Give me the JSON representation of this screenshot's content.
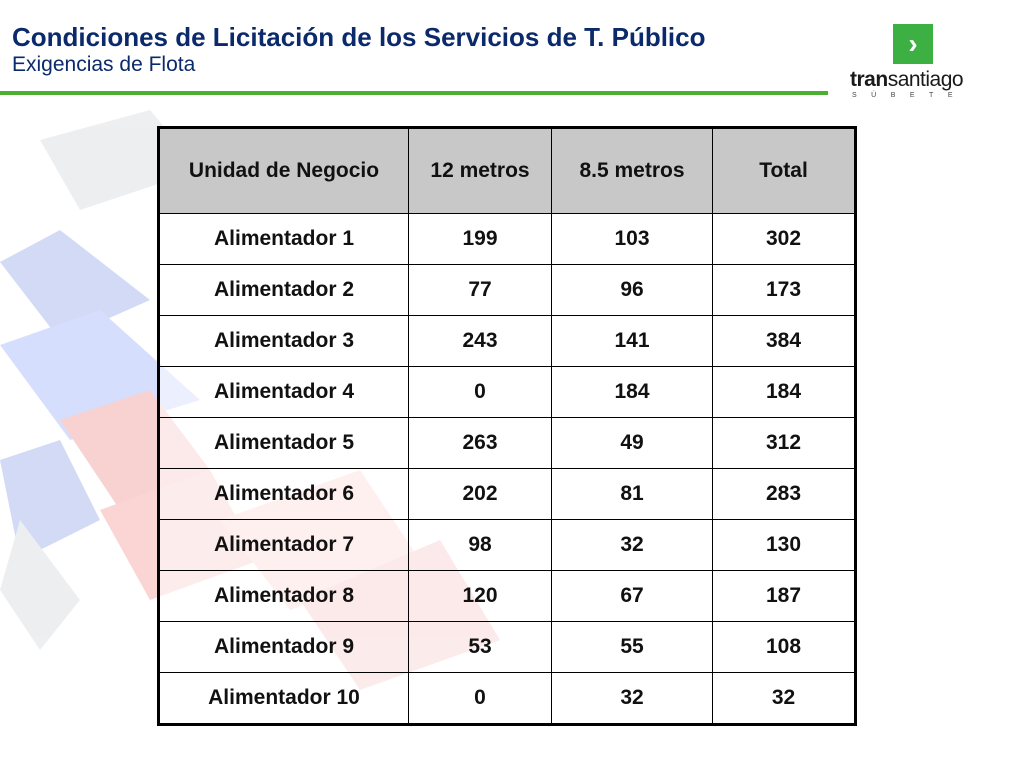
{
  "header": {
    "title": "Condiciones de Licitación de los Servicios de T. Público",
    "subtitle": "Exigencias de Flota"
  },
  "logo": {
    "arrow": "›",
    "word_bold": "tran",
    "word_rest": "santiago",
    "tagline": "SÚBETE"
  },
  "table": {
    "headers": [
      "Unidad de Negocio",
      "12 metros",
      "8.5 metros",
      "Total"
    ],
    "rows": [
      [
        "Alimentador 1",
        "199",
        "103",
        "302"
      ],
      [
        "Alimentador 2",
        "77",
        "96",
        "173"
      ],
      [
        "Alimentador 3",
        "243",
        "141",
        "384"
      ],
      [
        "Alimentador 4",
        "0",
        "184",
        "184"
      ],
      [
        "Alimentador 5",
        "263",
        "49",
        "312"
      ],
      [
        "Alimentador 6",
        "202",
        "81",
        "283"
      ],
      [
        "Alimentador 7",
        "98",
        "32",
        "130"
      ],
      [
        "Alimentador 8",
        "120",
        "67",
        "187"
      ],
      [
        "Alimentador 9",
        "53",
        "55",
        "108"
      ],
      [
        "Alimentador 10",
        "0",
        "32",
        "32"
      ]
    ]
  },
  "colors": {
    "title": "#0b2a6b",
    "rule": "#4caf32",
    "logo_green": "#3cb043",
    "header_fill": "#c8c8c8"
  }
}
